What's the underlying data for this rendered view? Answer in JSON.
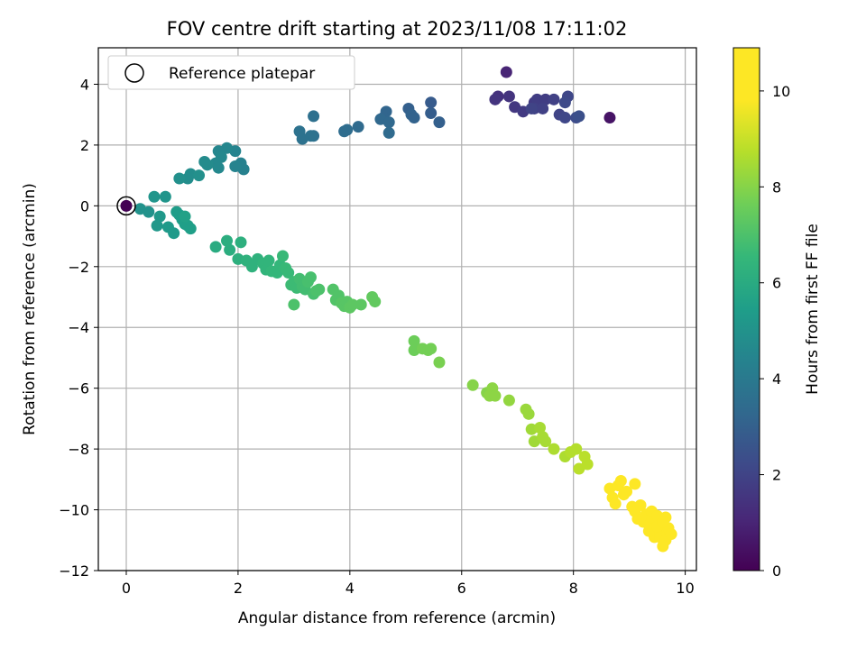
{
  "chart_data": {
    "type": "scatter",
    "title": "FOV centre drift starting at 2023/11/08 17:11:02",
    "xlabel": "Angular distance from reference (arcmin)",
    "ylabel": "Rotation from reference (arcmin)",
    "xlim": [
      -0.5,
      10.2
    ],
    "ylim": [
      -12,
      5.2
    ],
    "xticks": [
      0,
      2,
      4,
      6,
      8,
      10
    ],
    "yticks": [
      -12,
      -10,
      -8,
      -6,
      -4,
      -2,
      0,
      2,
      4
    ],
    "grid": true,
    "legend": {
      "placement": "upper-left",
      "entries": [
        "Reference platepar"
      ]
    },
    "colorbar": {
      "label": "Hours from first FF file",
      "range": [
        0,
        10.9
      ],
      "ticks": [
        0,
        2,
        4,
        6,
        8,
        10
      ],
      "colormap": "viridis"
    },
    "reference_point": {
      "x": 0,
      "y": 0
    },
    "points": [
      [
        8.65,
        2.9,
        0.5
      ],
      [
        6.8,
        4.4,
        1.0
      ],
      [
        6.65,
        3.6,
        1.4
      ],
      [
        6.6,
        3.5,
        1.5
      ],
      [
        6.85,
        3.6,
        1.5
      ],
      [
        6.95,
        3.25,
        1.6
      ],
      [
        7.1,
        3.1,
        1.7
      ],
      [
        7.3,
        3.4,
        1.7
      ],
      [
        7.35,
        3.5,
        1.8
      ],
      [
        7.5,
        3.5,
        1.8
      ],
      [
        7.65,
        3.5,
        1.9
      ],
      [
        7.3,
        3.2,
        1.9
      ],
      [
        7.45,
        3.2,
        1.9
      ],
      [
        7.25,
        3.2,
        2.0
      ],
      [
        7.75,
        3.0,
        2.0
      ],
      [
        7.85,
        2.9,
        2.1
      ],
      [
        7.9,
        3.6,
        2.1
      ],
      [
        7.85,
        3.4,
        2.2
      ],
      [
        8.05,
        2.9,
        2.3
      ],
      [
        8.1,
        2.95,
        2.4
      ],
      [
        5.45,
        3.4,
        2.8
      ],
      [
        5.45,
        3.05,
        2.9
      ],
      [
        5.6,
        2.75,
        3.0
      ],
      [
        5.05,
        3.2,
        3.0
      ],
      [
        5.1,
        3.0,
        3.1
      ],
      [
        5.15,
        2.9,
        3.1
      ],
      [
        4.65,
        3.1,
        3.2
      ],
      [
        4.6,
        2.9,
        3.2
      ],
      [
        4.55,
        2.85,
        3.3
      ],
      [
        4.7,
        2.75,
        3.3
      ],
      [
        4.7,
        2.4,
        3.4
      ],
      [
        4.15,
        2.6,
        3.4
      ],
      [
        3.95,
        2.5,
        3.5
      ],
      [
        3.9,
        2.45,
        3.5
      ],
      [
        3.35,
        2.95,
        3.6
      ],
      [
        3.35,
        2.3,
        3.6
      ],
      [
        3.3,
        2.3,
        3.7
      ],
      [
        3.15,
        2.2,
        3.7
      ],
      [
        3.1,
        2.45,
        3.7
      ],
      [
        2.1,
        1.2,
        4.3
      ],
      [
        2.05,
        1.4,
        4.3
      ],
      [
        1.95,
        1.3,
        4.4
      ],
      [
        1.95,
        1.8,
        4.4
      ],
      [
        1.8,
        1.9,
        4.5
      ],
      [
        1.65,
        1.8,
        4.5
      ],
      [
        1.6,
        1.4,
        4.6
      ],
      [
        1.7,
        1.6,
        4.6
      ],
      [
        1.65,
        1.25,
        4.6
      ],
      [
        1.45,
        1.35,
        4.7
      ],
      [
        1.4,
        1.45,
        4.7
      ],
      [
        1.15,
        1.05,
        4.8
      ],
      [
        1.1,
        0.9,
        4.8
      ],
      [
        0.95,
        0.9,
        4.9
      ],
      [
        1.3,
        1.0,
        4.9
      ],
      [
        0.25,
        -0.1,
        5.0
      ],
      [
        0.4,
        -0.2,
        5.0
      ],
      [
        0.5,
        0.3,
        5.1
      ],
      [
        0.7,
        0.3,
        5.1
      ],
      [
        0.6,
        -0.35,
        5.2
      ],
      [
        0.55,
        -0.65,
        5.2
      ],
      [
        0.75,
        -0.7,
        5.3
      ],
      [
        0.85,
        -0.9,
        5.3
      ],
      [
        0.9,
        -0.2,
        5.4
      ],
      [
        0.95,
        -0.3,
        5.4
      ],
      [
        1.0,
        -0.45,
        5.4
      ],
      [
        1.05,
        -0.6,
        5.5
      ],
      [
        1.1,
        -0.65,
        5.5
      ],
      [
        1.15,
        -0.75,
        5.5
      ],
      [
        1.05,
        -0.35,
        5.6
      ],
      [
        1.6,
        -1.35,
        6.0
      ],
      [
        1.8,
        -1.15,
        6.1
      ],
      [
        1.85,
        -1.45,
        6.1
      ],
      [
        2.05,
        -1.2,
        6.2
      ],
      [
        2.0,
        -1.75,
        6.2
      ],
      [
        2.15,
        -1.8,
        6.3
      ],
      [
        2.25,
        -2.0,
        6.3
      ],
      [
        2.35,
        -1.75,
        6.3
      ],
      [
        2.45,
        -1.9,
        6.4
      ],
      [
        2.5,
        -2.1,
        6.4
      ],
      [
        2.55,
        -1.8,
        6.4
      ],
      [
        2.6,
        -2.15,
        6.5
      ],
      [
        2.7,
        -2.2,
        6.5
      ],
      [
        2.75,
        -1.95,
        6.5
      ],
      [
        2.85,
        -2.05,
        6.6
      ],
      [
        2.8,
        -1.65,
        6.6
      ],
      [
        2.9,
        -2.2,
        6.6
      ],
      [
        2.95,
        -2.6,
        6.7
      ],
      [
        3.0,
        -2.5,
        6.7
      ],
      [
        3.05,
        -2.7,
        6.7
      ],
      [
        3.1,
        -2.4,
        6.8
      ],
      [
        3.15,
        -2.65,
        6.8
      ],
      [
        3.2,
        -2.75,
        6.8
      ],
      [
        3.25,
        -2.5,
        6.9
      ],
      [
        3.3,
        -2.35,
        6.9
      ],
      [
        3.35,
        -2.9,
        6.9
      ],
      [
        3.4,
        -2.8,
        7.0
      ],
      [
        3.45,
        -2.75,
        7.0
      ],
      [
        3.0,
        -3.25,
        7.0
      ],
      [
        3.7,
        -2.75,
        7.1
      ],
      [
        3.75,
        -3.1,
        7.1
      ],
      [
        3.8,
        -2.95,
        7.1
      ],
      [
        3.85,
        -3.2,
        7.2
      ],
      [
        3.9,
        -3.3,
        7.2
      ],
      [
        3.95,
        -3.15,
        7.2
      ],
      [
        4.0,
        -3.35,
        7.3
      ],
      [
        4.05,
        -3.25,
        7.3
      ],
      [
        4.2,
        -3.25,
        7.3
      ],
      [
        4.4,
        -3.0,
        7.4
      ],
      [
        4.45,
        -3.15,
        7.4
      ],
      [
        5.15,
        -4.45,
        7.6
      ],
      [
        5.15,
        -4.75,
        7.6
      ],
      [
        5.3,
        -4.7,
        7.7
      ],
      [
        5.4,
        -4.75,
        7.7
      ],
      [
        5.45,
        -4.7,
        7.7
      ],
      [
        5.6,
        -5.15,
        7.8
      ],
      [
        6.2,
        -5.9,
        8.0
      ],
      [
        6.45,
        -6.15,
        8.0
      ],
      [
        6.5,
        -6.25,
        8.1
      ],
      [
        6.55,
        -6.0,
        8.1
      ],
      [
        6.6,
        -6.25,
        8.1
      ],
      [
        6.85,
        -6.4,
        8.2
      ],
      [
        7.15,
        -6.7,
        8.3
      ],
      [
        7.2,
        -6.85,
        8.3
      ],
      [
        7.25,
        -7.35,
        8.4
      ],
      [
        7.3,
        -7.75,
        8.4
      ],
      [
        7.4,
        -7.3,
        8.5
      ],
      [
        7.45,
        -7.6,
        8.5
      ],
      [
        7.5,
        -7.75,
        8.5
      ],
      [
        7.65,
        -8.0,
        8.6
      ],
      [
        7.85,
        -8.25,
        8.6
      ],
      [
        7.95,
        -8.1,
        8.7
      ],
      [
        8.05,
        -8.0,
        8.7
      ],
      [
        8.1,
        -8.65,
        8.8
      ],
      [
        8.2,
        -8.25,
        8.8
      ],
      [
        8.25,
        -8.5,
        8.8
      ],
      [
        8.65,
        -9.3,
        9.8
      ],
      [
        8.7,
        -9.6,
        9.8
      ],
      [
        8.75,
        -9.8,
        9.9
      ],
      [
        8.8,
        -9.2,
        9.9
      ],
      [
        8.85,
        -9.05,
        9.9
      ],
      [
        8.9,
        -9.5,
        10.0
      ],
      [
        8.95,
        -9.4,
        10.0
      ],
      [
        9.05,
        -9.9,
        10.0
      ],
      [
        9.1,
        -9.15,
        10.1
      ],
      [
        9.1,
        -10.05,
        10.1
      ],
      [
        9.15,
        -10.3,
        10.1
      ],
      [
        9.2,
        -9.85,
        10.2
      ],
      [
        9.25,
        -10.4,
        10.2
      ],
      [
        9.3,
        -10.15,
        10.2
      ],
      [
        9.35,
        -10.5,
        10.3
      ],
      [
        9.4,
        -10.25,
        10.3
      ],
      [
        9.45,
        -10.6,
        10.3
      ],
      [
        9.5,
        -10.8,
        10.4
      ],
      [
        9.55,
        -10.45,
        10.4
      ],
      [
        9.6,
        -10.7,
        10.4
      ],
      [
        9.45,
        -10.9,
        10.5
      ],
      [
        9.55,
        -10.9,
        10.5
      ],
      [
        9.65,
        -11.0,
        10.5
      ],
      [
        9.7,
        -10.6,
        10.6
      ],
      [
        9.75,
        -10.8,
        10.6
      ],
      [
        9.6,
        -11.2,
        10.6
      ],
      [
        9.4,
        -10.05,
        10.7
      ],
      [
        9.5,
        -10.2,
        10.7
      ],
      [
        9.65,
        -10.25,
        10.7
      ],
      [
        9.35,
        -10.7,
        10.8
      ],
      [
        9.5,
        -10.55,
        10.8
      ],
      [
        9.6,
        -10.4,
        10.8
      ],
      [
        0.0,
        0.0,
        0.0
      ]
    ]
  }
}
